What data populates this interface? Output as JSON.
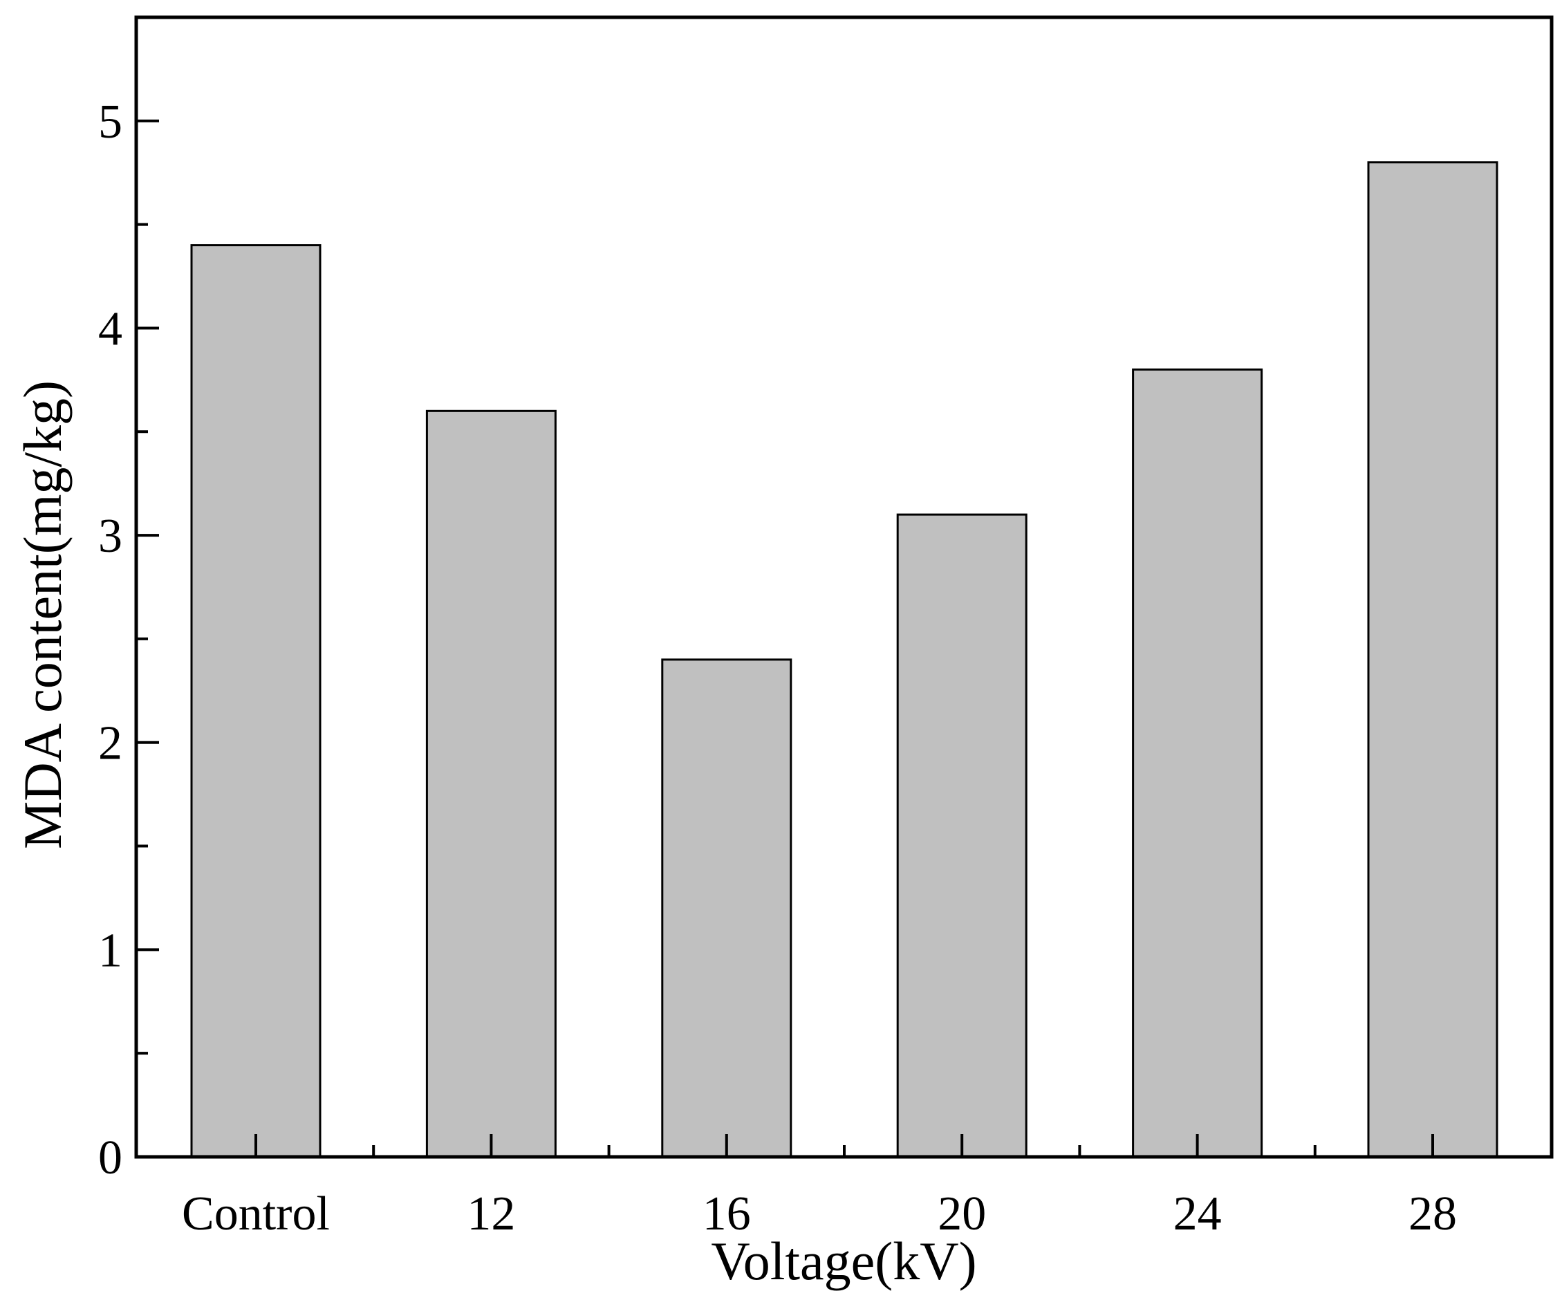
{
  "chart_data": {
    "type": "bar",
    "categories": [
      "Control",
      "12",
      "16",
      "20",
      "24",
      "28"
    ],
    "values": [
      4.4,
      3.6,
      2.4,
      3.1,
      3.8,
      4.8
    ],
    "xlabel": "Voltage(kV)",
    "ylabel": "MDA content(mg/kg)",
    "ylim": [
      0,
      5.5
    ],
    "yticks": [
      0,
      1,
      2,
      3,
      4,
      5
    ],
    "grid": false,
    "bar_color": "#c0c0c0",
    "bar_edge_color": "#000000"
  }
}
